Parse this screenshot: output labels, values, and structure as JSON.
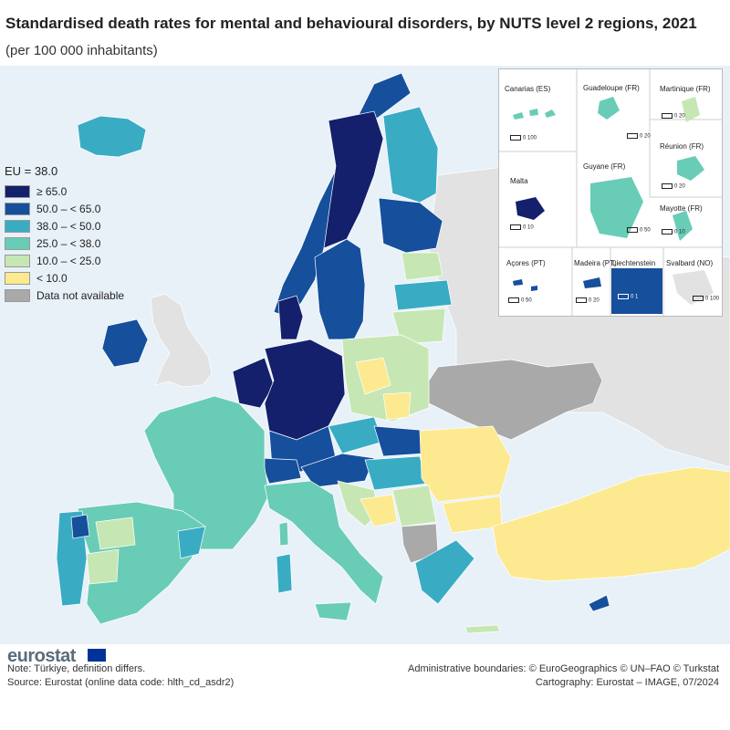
{
  "title": "Standardised death rates for mental and behavioural disorders, by NUTS level 2 regions, 2021",
  "subtitle": "(per 100 000 inhabitants)",
  "legend": {
    "eu_label": "EU = 38.0",
    "items": [
      {
        "label": "≥ 65.0",
        "color": "#14206b"
      },
      {
        "label": "50.0 – < 65.0",
        "color": "#164f9c"
      },
      {
        "label": "38.0 – < 50.0",
        "color": "#39acc4"
      },
      {
        "label": "25.0 – < 38.0",
        "color": "#69ccb6"
      },
      {
        "label": "10.0 – < 25.0",
        "color": "#c6e7b4"
      },
      {
        "label": "< 10.0",
        "color": "#fde98f"
      },
      {
        "label": "Data not available",
        "color": "#a9a9a9"
      }
    ]
  },
  "insets": {
    "canarias": {
      "label": "Canarias (ES)",
      "scale": "0   100"
    },
    "guadeloupe": {
      "label": "Guadeloupe (FR)",
      "scale": "0   20"
    },
    "martinique": {
      "label": "Martinique (FR)",
      "scale": "0   20"
    },
    "reunion": {
      "label": "Réunion (FR)",
      "scale": "0   20"
    },
    "malta": {
      "label": "Malta",
      "scale": "0   10"
    },
    "guyane": {
      "label": "Guyane (FR)",
      "scale": "0   50"
    },
    "mayotte": {
      "label": "Mayotte (FR)",
      "scale": "0   10"
    },
    "acores": {
      "label": "Açores (PT)",
      "scale": "0   50"
    },
    "madeira": {
      "label": "Madeira (PT)",
      "scale": "0   20"
    },
    "liechtenstein": {
      "label": "Liechtenstein",
      "scale": "0   1"
    },
    "svalbard": {
      "label": "Svalbard (NO)",
      "scale": "0   100"
    }
  },
  "footer": {
    "logo": "eurostat",
    "note": "Note: Türkiye, definition differs.",
    "source": "Source: Eurostat (online data code: hlth_cd_asdr2)",
    "admin": "Administrative boundaries: © EuroGeographics © UN–FAO © Turkstat",
    "cartography": "Cartography: Eurostat – IMAGE, 07/2024"
  }
}
